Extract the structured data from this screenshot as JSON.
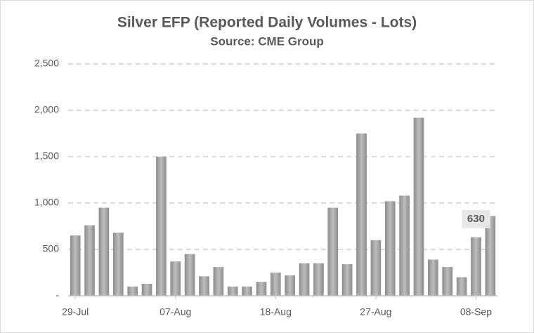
{
  "chart_data": {
    "type": "bar",
    "title": "Silver EFP (Reported Daily Volumes - Lots)",
    "subtitle": "Source: CME Group",
    "categories": [
      "29-Jul",
      null,
      null,
      null,
      null,
      null,
      null,
      "07-Aug",
      null,
      null,
      null,
      null,
      null,
      null,
      "18-Aug",
      null,
      null,
      null,
      null,
      null,
      null,
      "27-Aug",
      null,
      null,
      null,
      null,
      null,
      null,
      "08-Sep",
      null
    ],
    "values": [
      650,
      760,
      950,
      680,
      100,
      130,
      1500,
      370,
      450,
      210,
      310,
      100,
      100,
      150,
      250,
      220,
      350,
      350,
      950,
      340,
      1750,
      600,
      1020,
      1080,
      1920,
      390,
      310,
      200,
      630,
      860
    ],
    "color": "#a6a6a6",
    "ylim": [
      0,
      2500
    ],
    "yticks": [
      {
        "value": 0,
        "label": "-"
      },
      {
        "value": 500,
        "label": "500"
      },
      {
        "value": 1000,
        "label": "1,000"
      },
      {
        "value": 1500,
        "label": "1,500"
      },
      {
        "value": 2000,
        "label": "2,000"
      },
      {
        "value": 2500,
        "label": "2,500"
      }
    ],
    "grid": true
  }
}
